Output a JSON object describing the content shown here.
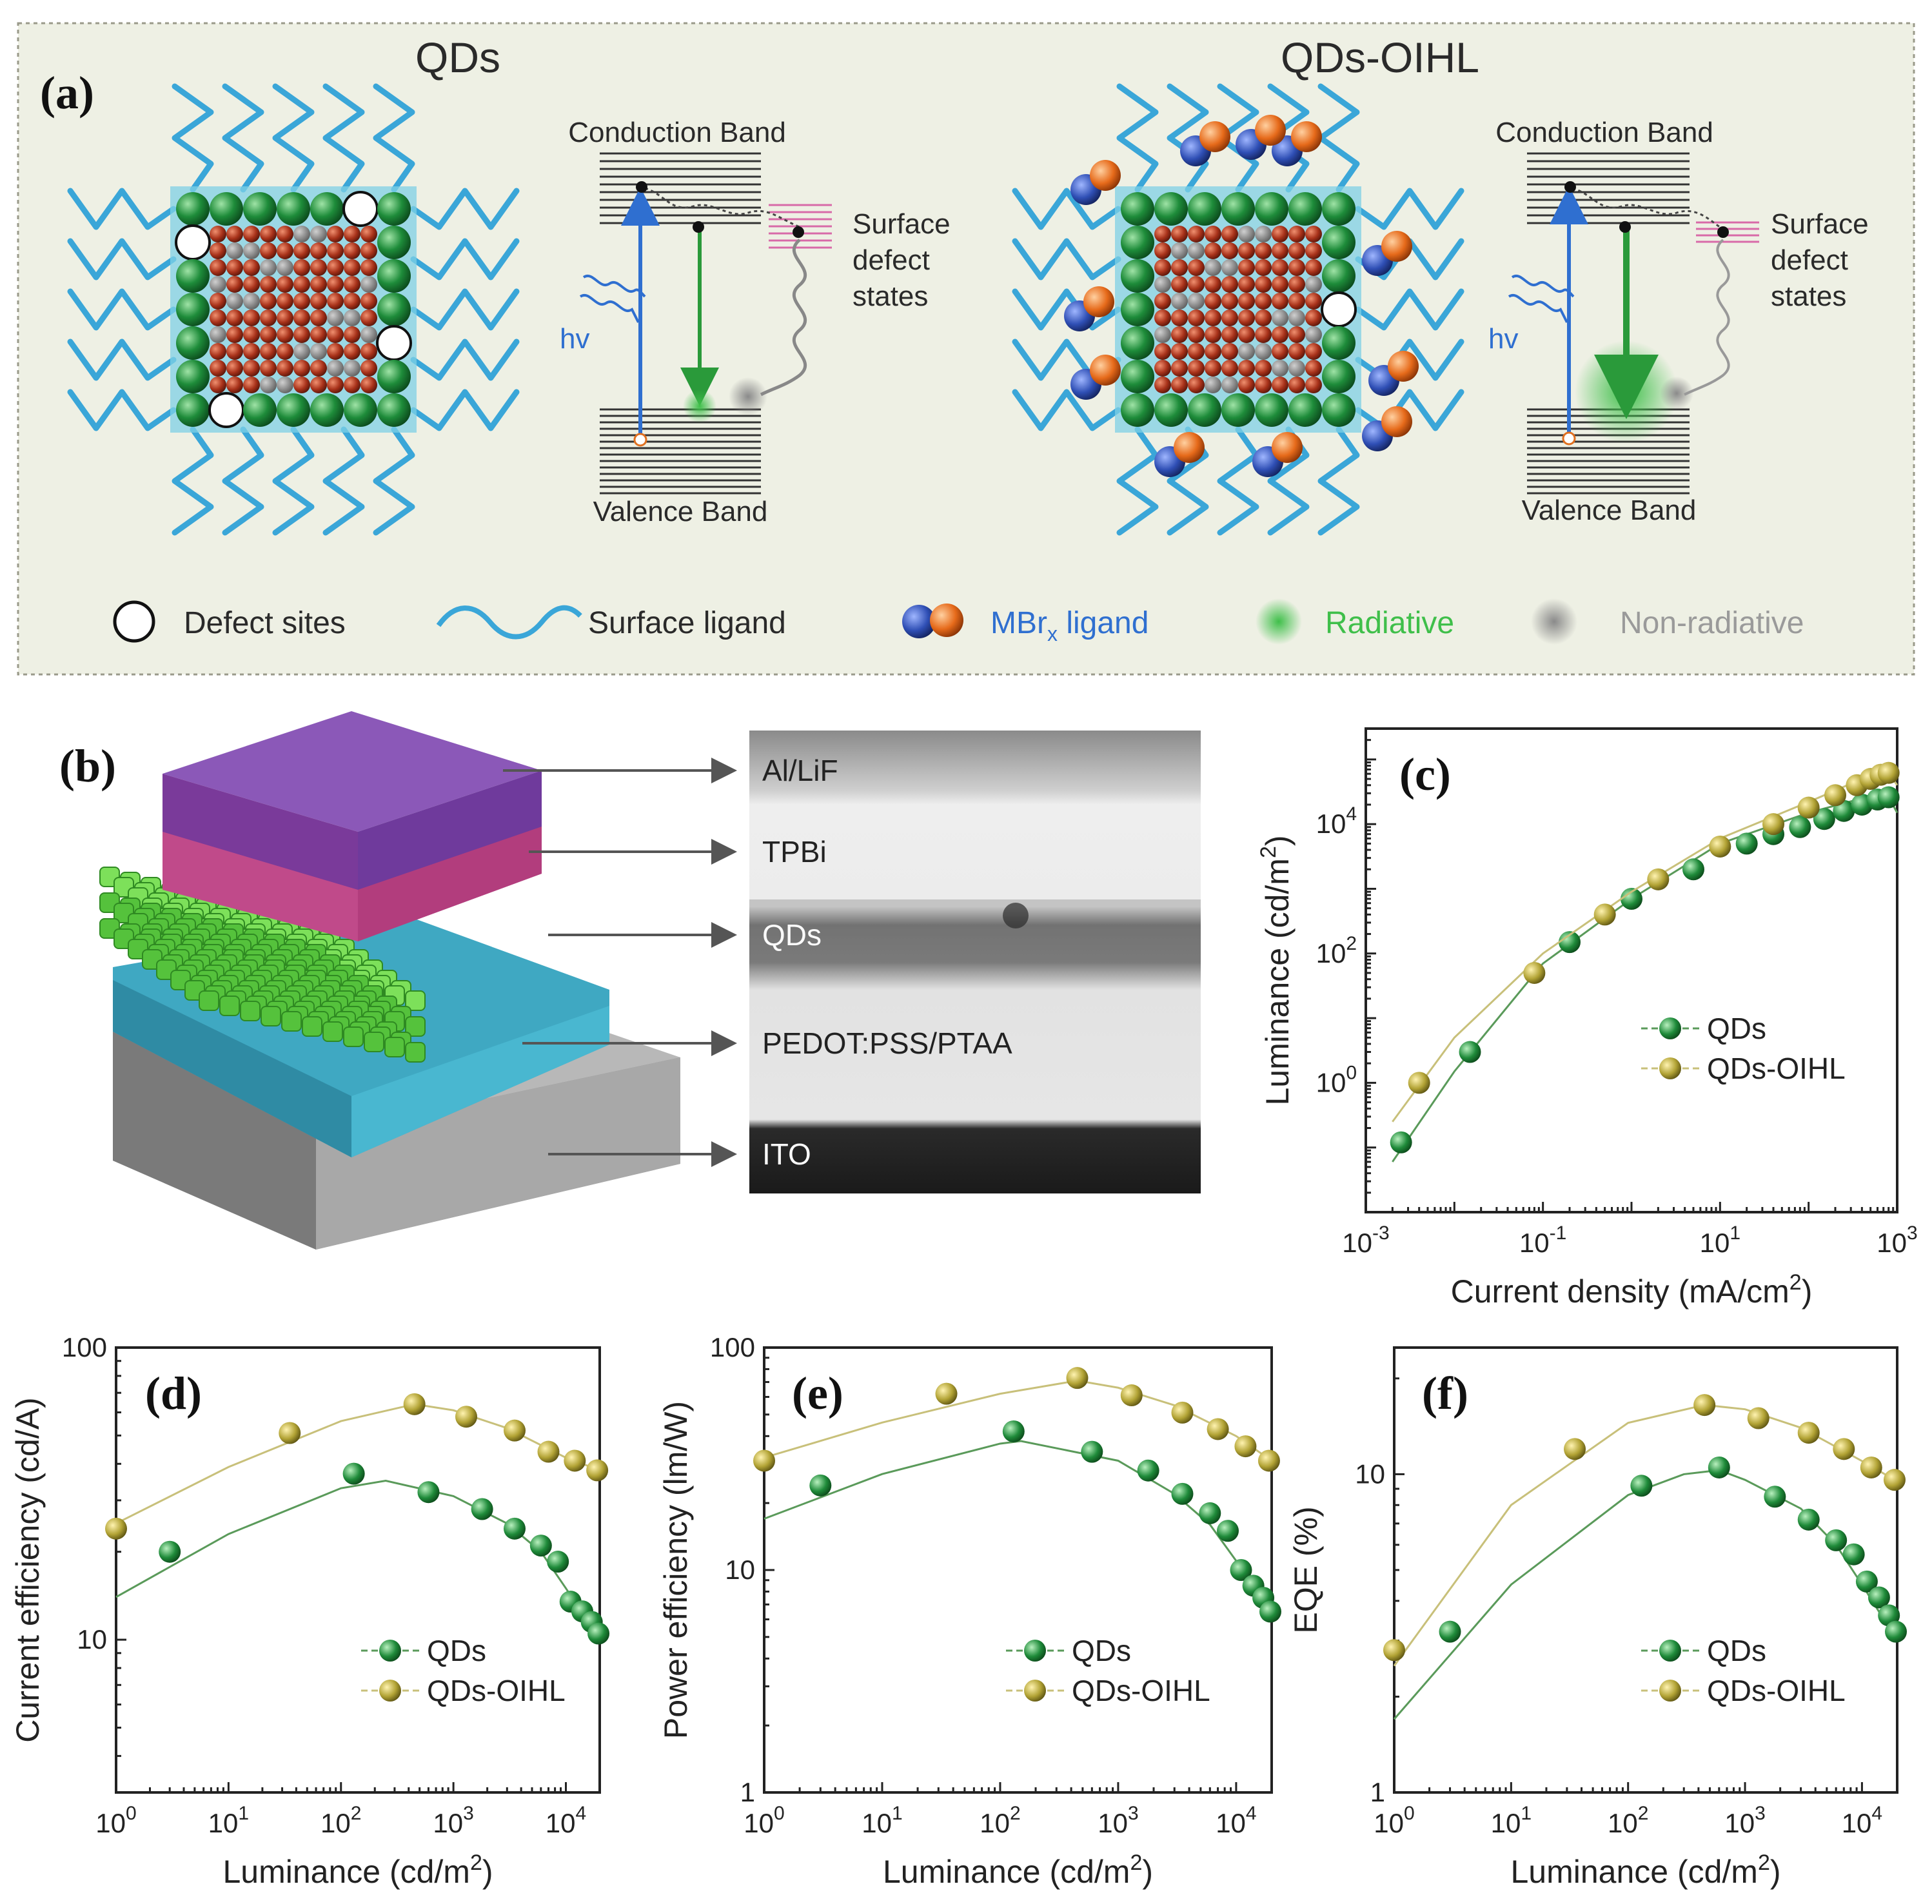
{
  "panel_a": {
    "label": "(a)",
    "left_title": "QDs",
    "right_title": "QDs-OIHL",
    "conduction_band": "Conduction Band",
    "valence_band": "Valence Band",
    "surface": "Surface",
    "defect": "defect",
    "states": "states",
    "hv": "hv",
    "legend": {
      "defect_sites": "Defect sites",
      "surface_ligand": "Surface ligand",
      "mbr_ligand": "MBr",
      "mbr_sub": "x",
      "mbr_suffix": " ligand",
      "radiative": "Radiative",
      "non_radiative": "Non-radiative"
    },
    "colors": {
      "ligand": "#3aa6d8",
      "green_atom": "#1e8c3a",
      "red_atom": "#a8321a",
      "gray_atom": "#7a7a7a",
      "cube": "#7fd0e6",
      "radiative": "#3fbf4a",
      "mbr_blue": "#2f4fb5",
      "mbr_orange": "#e66a1a",
      "panel_bg": "#eef0e4"
    }
  },
  "panel_b": {
    "label": "(b)",
    "layers": [
      "Al/LiF",
      "TPBi",
      "QDs",
      "PEDOT:PSS/PTAA",
      "ITO"
    ],
    "colors": {
      "top": "#7a3a9a",
      "tpbi": "#c04a8a",
      "qd": "#5ec940",
      "pedot": "#3fa8c2",
      "ito": "#9a9a9a"
    }
  },
  "chart_data": [
    {
      "id": "c",
      "label": "(c)",
      "type": "scatter",
      "xscale": "log",
      "yscale": "log",
      "xlabel": "Current density (mA/cm",
      "xlabel_sup": "2",
      "xlabel_end": ")",
      "ylabel": "Luminance (cd/m",
      "ylabel_sup": "2",
      "ylabel_end": ")",
      "xlim": [
        0.001,
        1000
      ],
      "ylim": [
        0.01,
        300000
      ],
      "xticks": [
        {
          "base": "10",
          "exp": "-3",
          "v": 0.001
        },
        {
          "base": "10",
          "exp": "-1",
          "v": 0.1
        },
        {
          "base": "10",
          "exp": "1",
          "v": 10
        },
        {
          "base": "10",
          "exp": "3",
          "v": 1000
        }
      ],
      "yticks": [
        {
          "base": "10",
          "exp": "0",
          "v": 1
        },
        {
          "base": "10",
          "exp": "2",
          "v": 100
        },
        {
          "base": "10",
          "exp": "4",
          "v": 10000
        }
      ],
      "legend": [
        "QDs",
        "QDs-OIHL"
      ],
      "series": [
        {
          "name": "QDs",
          "color": "#1f8b3a",
          "x": [
            0.0025,
            0.015,
            0.2,
            1.0,
            5,
            20,
            40,
            80,
            150,
            250,
            400,
            600,
            800
          ],
          "y": [
            0.12,
            3,
            150,
            700,
            2000,
            5000,
            7000,
            9000,
            12000,
            16000,
            20000,
            24000,
            26000
          ],
          "fit_x": [
            0.002,
            0.01,
            0.1,
            1,
            10,
            100,
            400,
            800,
            1000
          ],
          "fit_y": [
            0.06,
            1.5,
            70,
            700,
            5000,
            15000,
            25000,
            26000,
            15000
          ]
        },
        {
          "name": "QDs-OIHL",
          "color": "#b2a335",
          "x": [
            0.004,
            0.08,
            0.5,
            2,
            10,
            40,
            100,
            200,
            350,
            500,
            650,
            800
          ],
          "y": [
            1,
            50,
            400,
            1400,
            4500,
            10000,
            18000,
            28000,
            40000,
            50000,
            58000,
            62000
          ],
          "fit_x": [
            0.002,
            0.01,
            0.1,
            1,
            10,
            100,
            400,
            800,
            1000
          ],
          "fit_y": [
            0.25,
            5,
            100,
            900,
            6000,
            22000,
            50000,
            62000,
            40000
          ]
        }
      ]
    },
    {
      "id": "d",
      "label": "(d)",
      "type": "scatter",
      "xscale": "log",
      "yscale": "log",
      "xlabel": "Luminance (cd/m",
      "xlabel_sup": "2",
      "xlabel_end": ")",
      "ylabel": "Current efficiency (cd/A)",
      "ylabel_sup": "",
      "ylabel_end": "",
      "xlim": [
        1,
        20000
      ],
      "ylim": [
        3,
        100
      ],
      "xticks": [
        {
          "base": "10",
          "exp": "0",
          "v": 1
        },
        {
          "base": "10",
          "exp": "1",
          "v": 10
        },
        {
          "base": "10",
          "exp": "2",
          "v": 100
        },
        {
          "base": "10",
          "exp": "3",
          "v": 1000
        },
        {
          "base": "10",
          "exp": "4",
          "v": 10000
        }
      ],
      "yticks": [
        {
          "base": "10",
          "exp": "",
          "v": 10
        },
        {
          "base": "100",
          "exp": "",
          "v": 100
        }
      ],
      "legend": [
        "QDs",
        "QDs-OIHL"
      ],
      "series": [
        {
          "name": "QDs",
          "color": "#1f8b3a",
          "x": [
            3,
            130,
            600,
            1800,
            3500,
            6000,
            8500,
            11000,
            14000,
            17000,
            19500
          ],
          "y": [
            20,
            37,
            32,
            28,
            24,
            21,
            18.5,
            13.5,
            12.5,
            11.5,
            10.5
          ],
          "fit_x": [
            1,
            10,
            100,
            250,
            1000,
            3000,
            6000,
            10000,
            20000
          ],
          "fit_y": [
            14,
            23,
            33,
            35,
            31,
            25,
            20,
            15,
            10
          ]
        },
        {
          "name": "QDs-OIHL",
          "color": "#b2a335",
          "x": [
            1,
            35,
            450,
            1300,
            3500,
            7000,
            12000,
            19000
          ],
          "y": [
            24,
            51,
            64,
            58,
            52,
            44,
            41,
            38
          ],
          "fit_x": [
            1,
            10,
            100,
            450,
            1000,
            3000,
            10000,
            20000
          ],
          "fit_y": [
            25,
            39,
            56,
            64,
            61,
            53,
            42,
            38
          ]
        }
      ]
    },
    {
      "id": "e",
      "label": "(e)",
      "type": "scatter",
      "xscale": "log",
      "yscale": "log",
      "xlabel": "Luminance (cd/m",
      "xlabel_sup": "2",
      "xlabel_end": ")",
      "ylabel": "Power efficiency (lm/W)",
      "ylabel_sup": "",
      "ylabel_end": "",
      "xlim": [
        1,
        20000
      ],
      "ylim": [
        1,
        100
      ],
      "xticks": [
        {
          "base": "10",
          "exp": "0",
          "v": 1
        },
        {
          "base": "10",
          "exp": "1",
          "v": 10
        },
        {
          "base": "10",
          "exp": "2",
          "v": 100
        },
        {
          "base": "10",
          "exp": "3",
          "v": 1000
        },
        {
          "base": "10",
          "exp": "4",
          "v": 10000
        }
      ],
      "yticks": [
        {
          "base": "1",
          "exp": "",
          "v": 1
        },
        {
          "base": "10",
          "exp": "",
          "v": 10
        },
        {
          "base": "100",
          "exp": "",
          "v": 100
        }
      ],
      "legend": [
        "QDs",
        "QDs-OIHL"
      ],
      "series": [
        {
          "name": "QDs",
          "color": "#1f8b3a",
          "x": [
            3,
            130,
            600,
            1800,
            3500,
            6000,
            8500,
            11000,
            14000,
            17000,
            19500
          ],
          "y": [
            24,
            42,
            34,
            28,
            22,
            18,
            15,
            10,
            8.5,
            7.5,
            6.5
          ],
          "fit_x": [
            1,
            10,
            100,
            150,
            1000,
            3000,
            6000,
            10000,
            20000
          ],
          "fit_y": [
            17,
            27,
            37,
            38,
            31,
            22,
            16,
            11,
            6.5
          ]
        },
        {
          "name": "QDs-OIHL",
          "color": "#b2a335",
          "x": [
            1,
            35,
            450,
            1300,
            3500,
            7000,
            12000,
            19000
          ],
          "y": [
            31,
            62,
            73,
            61,
            51,
            43,
            36,
            31
          ],
          "fit_x": [
            1,
            10,
            100,
            450,
            1000,
            3000,
            10000,
            20000
          ],
          "fit_y": [
            32,
            46,
            62,
            71,
            66,
            55,
            40,
            31
          ]
        }
      ]
    },
    {
      "id": "f",
      "label": "(f)",
      "type": "scatter",
      "xscale": "log",
      "yscale": "log",
      "xlabel": "Luminance (cd/m",
      "xlabel_sup": "2",
      "xlabel_end": ")",
      "ylabel": "EQE (%)",
      "ylabel_sup": "",
      "ylabel_end": "",
      "xlim": [
        1,
        20000
      ],
      "ylim": [
        1,
        25
      ],
      "xticks": [
        {
          "base": "10",
          "exp": "0",
          "v": 1
        },
        {
          "base": "10",
          "exp": "1",
          "v": 10
        },
        {
          "base": "10",
          "exp": "2",
          "v": 100
        },
        {
          "base": "10",
          "exp": "3",
          "v": 1000
        },
        {
          "base": "10",
          "exp": "4",
          "v": 10000
        }
      ],
      "yticks": [
        {
          "base": "1",
          "exp": "",
          "v": 1
        },
        {
          "base": "10",
          "exp": "",
          "v": 10
        }
      ],
      "legend": [
        "QDs",
        "QDs-OIHL"
      ],
      "series": [
        {
          "name": "QDs",
          "color": "#1f8b3a",
          "x": [
            3,
            130,
            600,
            1800,
            3500,
            6000,
            8500,
            11000,
            14000,
            17000,
            19500
          ],
          "y": [
            3.2,
            9.2,
            10.5,
            8.5,
            7.2,
            6.2,
            5.6,
            4.6,
            4.1,
            3.6,
            3.2
          ],
          "fit_x": [
            1,
            10,
            100,
            300,
            600,
            1000,
            3000,
            6000,
            10000,
            20000
          ],
          "fit_y": [
            1.7,
            4.5,
            8.6,
            10,
            10.3,
            9.6,
            7.8,
            6,
            4.5,
            3
          ]
        },
        {
          "name": "QDs-OIHL",
          "color": "#b2a335",
          "x": [
            1,
            35,
            450,
            1300,
            3500,
            7000,
            12000,
            19000
          ],
          "y": [
            2.8,
            12,
            16.5,
            15,
            13.5,
            12,
            10.5,
            9.6
          ],
          "fit_x": [
            1,
            10,
            100,
            450,
            1000,
            3000,
            10000,
            20000
          ],
          "fit_y": [
            2.5,
            8,
            14.5,
            16.5,
            16,
            14,
            11,
            9.5
          ]
        }
      ]
    }
  ]
}
